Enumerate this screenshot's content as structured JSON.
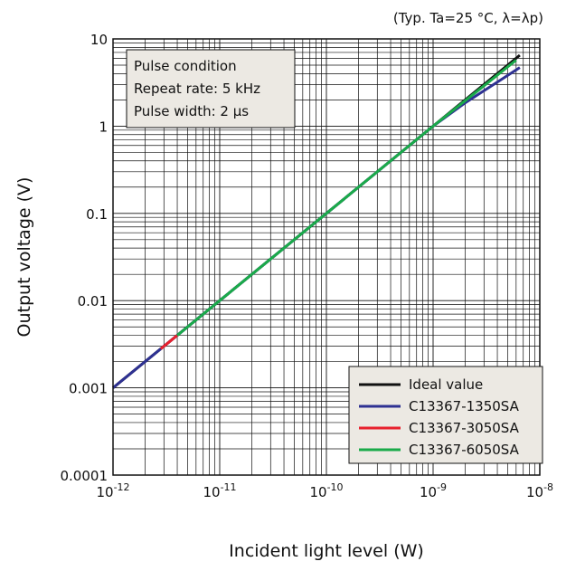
{
  "chart_data": {
    "type": "line",
    "x_scale": "log",
    "y_scale": "log",
    "xlim": [
      1e-12,
      1e-08
    ],
    "ylim": [
      0.0001,
      10
    ],
    "x_tick_labels": [
      {
        "base": "10",
        "exp": "-12"
      },
      {
        "base": "10",
        "exp": "-11"
      },
      {
        "base": "10",
        "exp": "-10"
      },
      {
        "base": "10",
        "exp": "-9"
      },
      {
        "base": "10",
        "exp": "-8"
      }
    ],
    "y_tick_labels": [
      "10",
      "1",
      "0.1",
      "0.01",
      "0.001",
      "0.0001"
    ],
    "xlabel": "Incident light level (W)",
    "ylabel": "Output voltage (V)",
    "condition_note": "(Typ. Ta=25 °C, λ=λp)",
    "grid": true,
    "annotation_box": {
      "lines": [
        "Pulse condition",
        "Repeat rate: 5 kHz",
        "Pulse width: 2 μs"
      ]
    },
    "legend_position": "bottom-right",
    "series": [
      {
        "name": "Ideal value",
        "color": "#111111",
        "x": [
          1e-12,
          1e-11,
          1e-10,
          1e-09,
          6.5e-09
        ],
        "y": [
          0.001,
          0.01,
          0.1,
          1,
          6.5
        ]
      },
      {
        "name": "C13367-1350SA",
        "color": "#2e3192",
        "x": [
          1e-12,
          1e-11,
          1e-10,
          1e-09,
          2e-09,
          4e-09,
          6.5e-09
        ],
        "y": [
          0.001,
          0.01,
          0.1,
          1,
          1.85,
          3.2,
          4.7
        ]
      },
      {
        "name": "C13367-3050SA",
        "color": "#e8212e",
        "x": [
          2.8e-12,
          4e-12
        ],
        "y": [
          0.0028,
          0.004
        ]
      },
      {
        "name": "C13367-6050SA",
        "color": "#1aaa4a",
        "x": [
          4e-12,
          1e-11,
          1e-10,
          1e-09,
          3e-09,
          6e-09
        ],
        "y": [
          0.004,
          0.01,
          0.1,
          1,
          2.9,
          5.7
        ]
      }
    ]
  }
}
